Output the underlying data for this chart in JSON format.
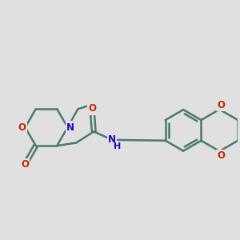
{
  "bg_color": "#e0e0e0",
  "bond_color": "#4a7a6a",
  "bond_width": 1.8,
  "atom_colors": {
    "O": "#cc2200",
    "N": "#2200cc",
    "C": "#4a7a6a",
    "H": "#2200cc"
  },
  "font_size": 8.5,
  "xlim": [
    -2.8,
    5.2
  ],
  "ylim": [
    -2.2,
    2.4
  ]
}
